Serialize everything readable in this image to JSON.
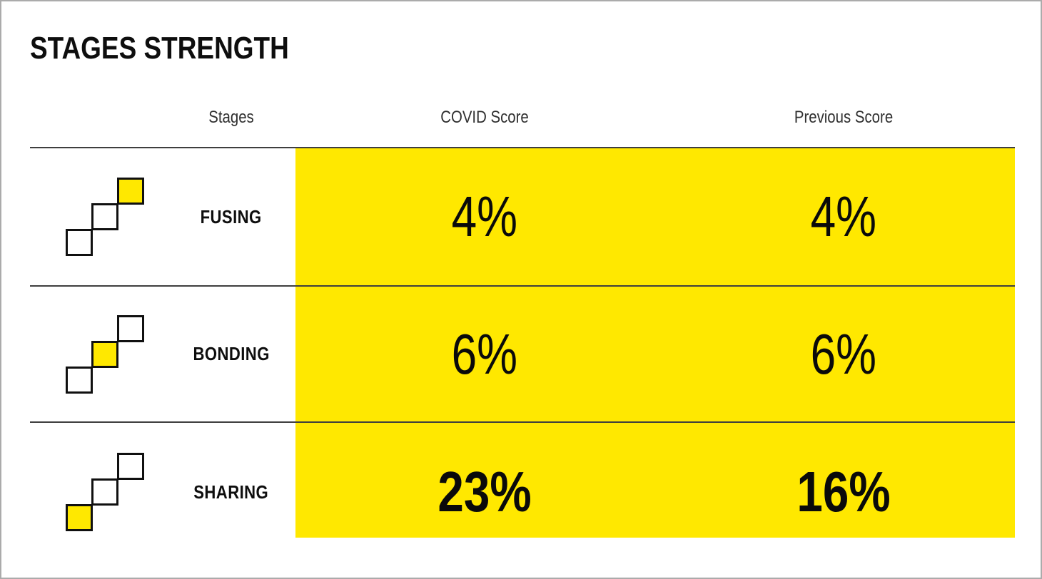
{
  "page_title": "STAGES STRENGTH",
  "table": {
    "headers": {
      "stages": "Stages",
      "covid": "COVID Score",
      "previous": "Previous Score"
    },
    "rows": [
      {
        "stage": "FUSING",
        "covid_score": "4%",
        "previous_score": "4%",
        "highlighted_step": "top",
        "bold_values": false
      },
      {
        "stage": "BONDING",
        "covid_score": "6%",
        "previous_score": "6%",
        "highlighted_step": "middle",
        "bold_values": false
      },
      {
        "stage": "SHARING",
        "covid_score": "23%",
        "previous_score": "16%",
        "highlighted_step": "bottom",
        "bold_values": true
      }
    ]
  },
  "colors": {
    "highlight": "#FFE800",
    "separator": "#3E3E3E",
    "text_dark": "#111111",
    "header_text": "#2F2F2F",
    "window_border": "#ABABAB"
  },
  "chart_data": {
    "type": "table",
    "title": "STAGES STRENGTH",
    "columns": [
      "Stages",
      "COVID Score",
      "Previous Score"
    ],
    "rows": [
      [
        "FUSING",
        "4%",
        "4%"
      ],
      [
        "BONDING",
        "6%",
        "6%"
      ],
      [
        "SHARING",
        "23%",
        "16%"
      ]
    ],
    "notes": "Score columns share a continuous yellow highlight block; last row values are bold; each stage has a 3-square staircase icon with one yellow step (FUSING=top, BONDING=middle, SHARING=bottom)."
  }
}
